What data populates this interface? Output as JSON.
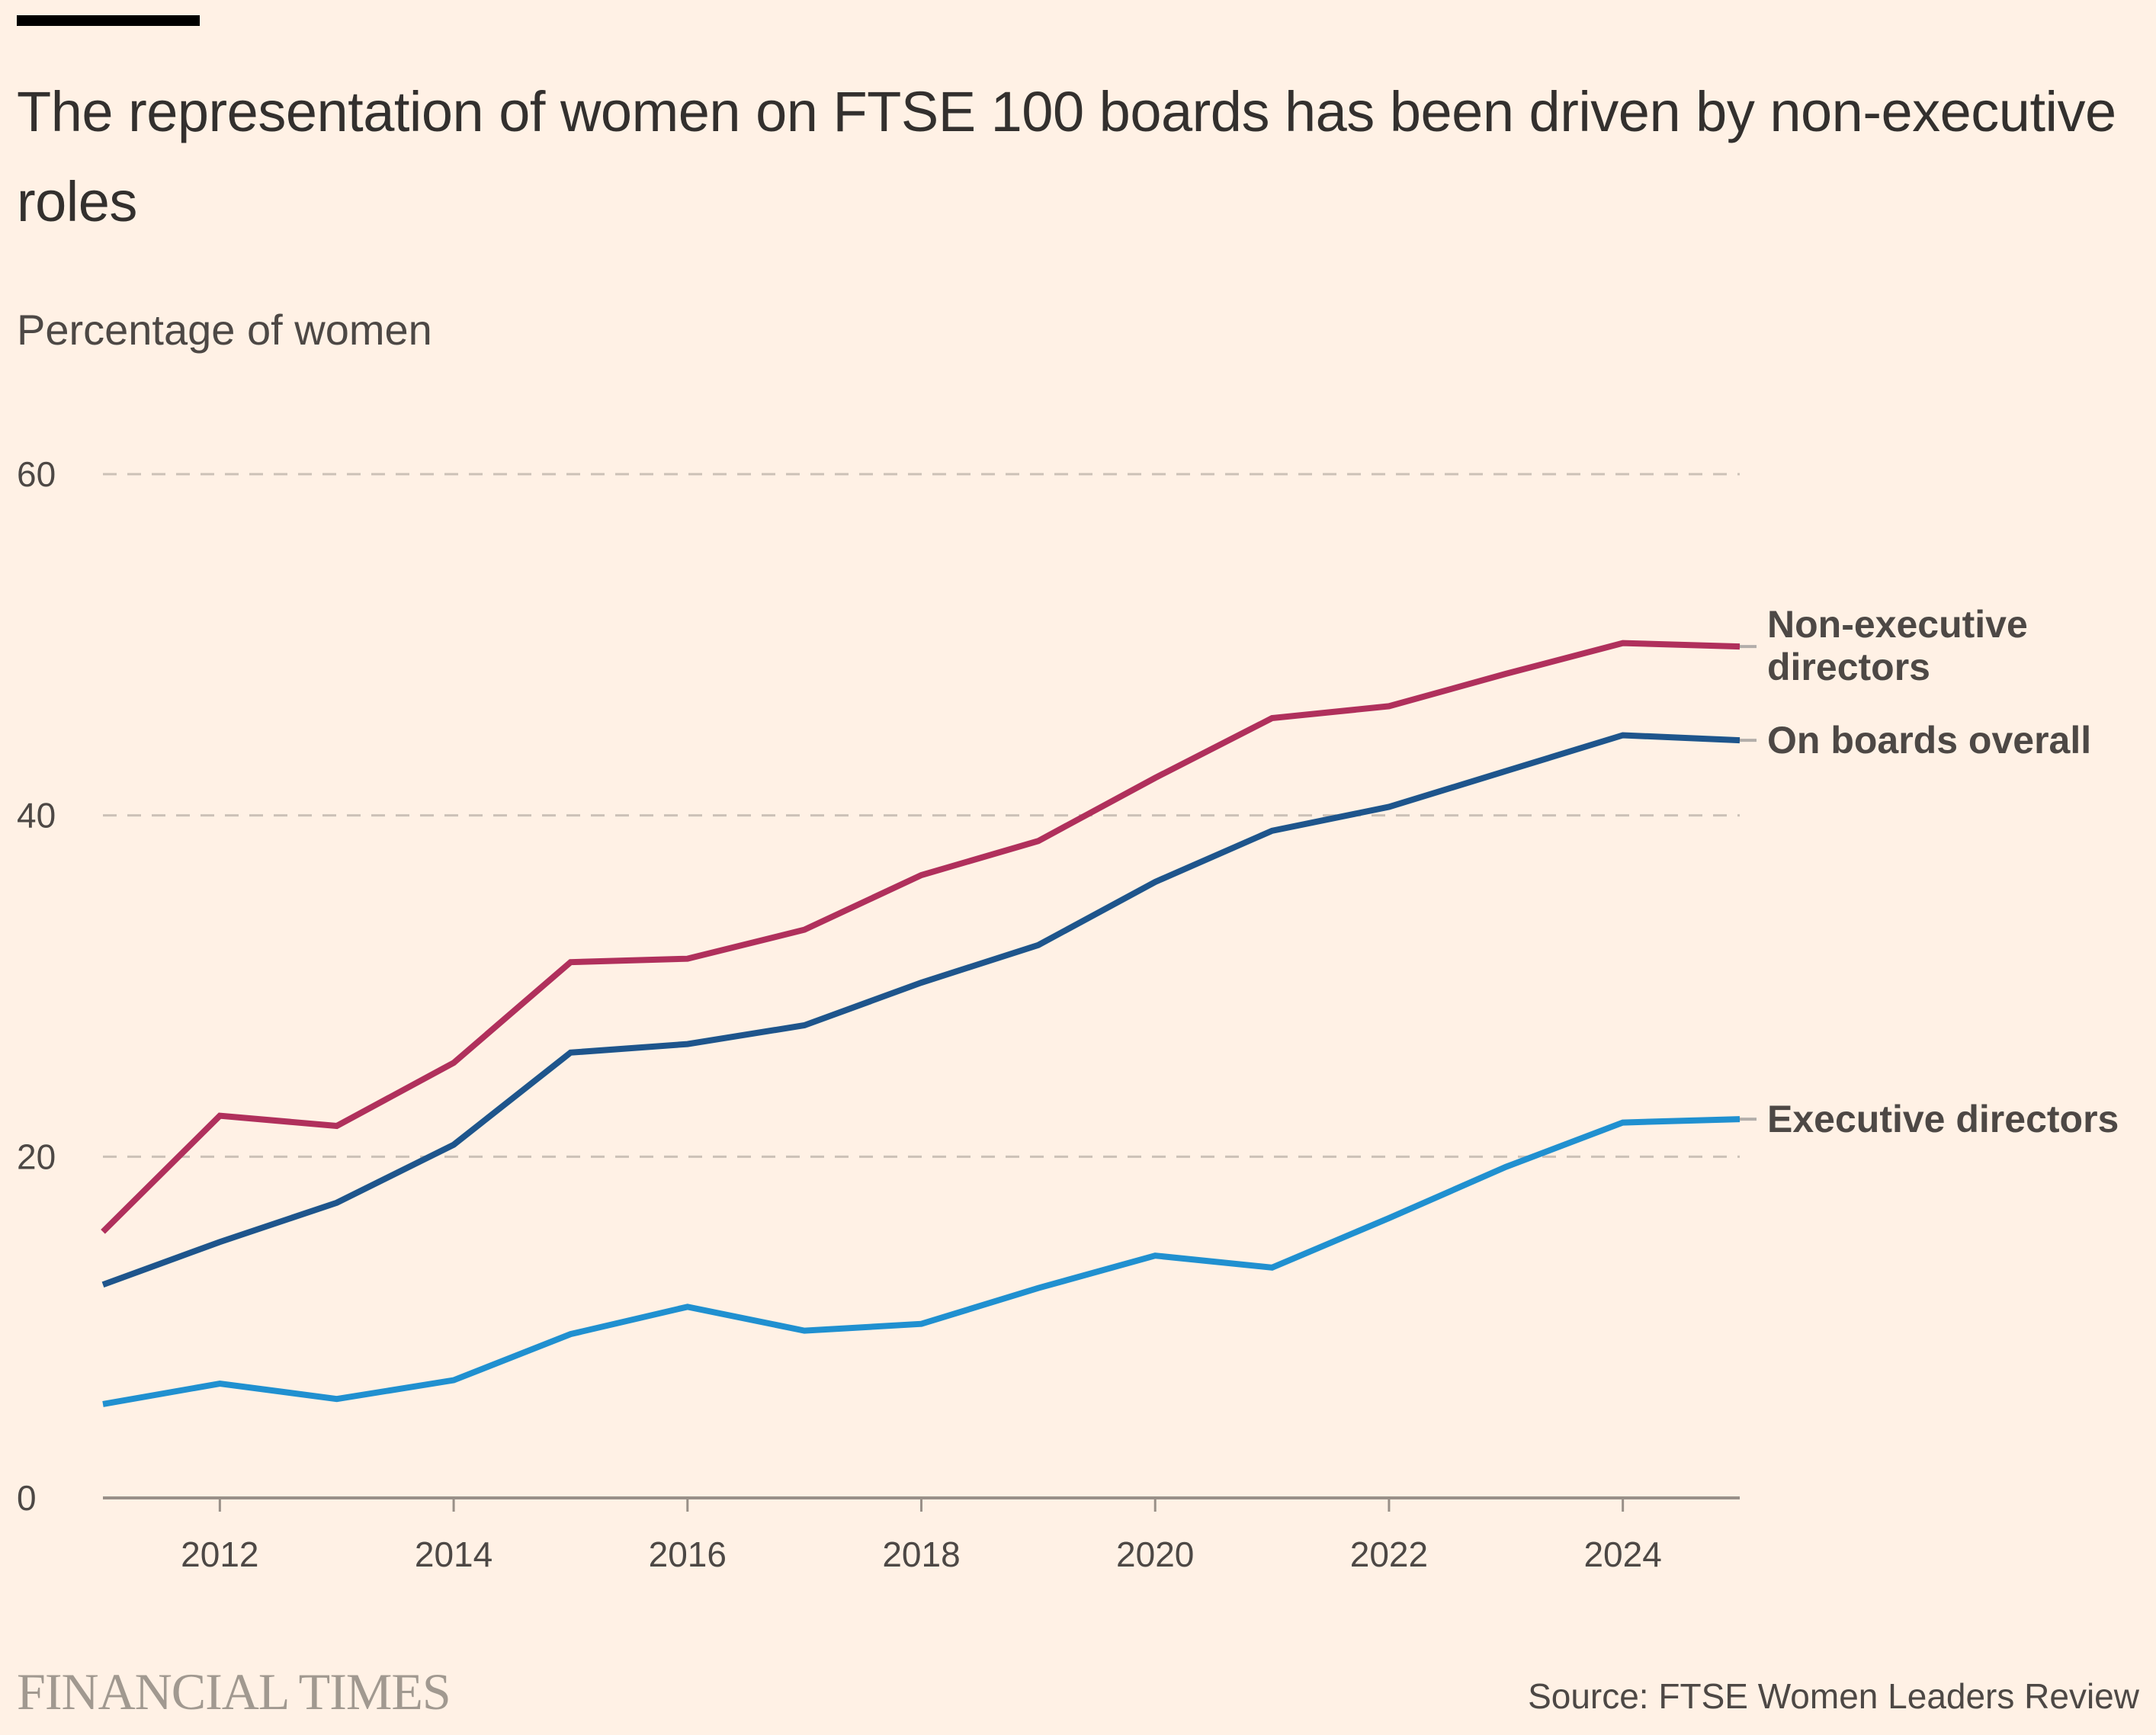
{
  "header": {
    "title": "The representation of women on FTSE 100 boards has been driven by non-executive roles",
    "subtitle": "Percentage of women"
  },
  "footer": {
    "brand": "FINANCIAL TIMES",
    "source": "Source: FTSE Women Leaders Review"
  },
  "colors": {
    "background": "#fff1e5",
    "non_executive": "#b0305c",
    "overall": "#1e558c",
    "executive": "#2090d0",
    "gridline": "#ccc1b7",
    "axis": "#999088",
    "connector": "#b3aeaa"
  },
  "chart_data": {
    "type": "line",
    "title": "The representation of women on FTSE 100 boards has been driven by non-executive roles",
    "ylabel": "Percentage of women",
    "xlabel": "",
    "x": [
      2011,
      2012,
      2013,
      2014,
      2015,
      2016,
      2017,
      2018,
      2019,
      2020,
      2021,
      2022,
      2023,
      2024,
      2025
    ],
    "xlim": [
      2011,
      2025
    ],
    "ylim": [
      0,
      60
    ],
    "yticks": [
      0,
      20,
      40,
      60
    ],
    "xticks": [
      2012,
      2014,
      2016,
      2018,
      2020,
      2022,
      2024
    ],
    "grid": true,
    "legend": "direct labels at right end of lines",
    "series": [
      {
        "name": "Non-executive directors",
        "label_lines": [
          "Non-executive",
          "directors"
        ],
        "color_key": "non_executive",
        "values": [
          15.6,
          22.4,
          21.8,
          25.5,
          31.4,
          31.6,
          33.3,
          36.5,
          38.5,
          42.2,
          45.7,
          46.4,
          48.3,
          50.1,
          49.9
        ]
      },
      {
        "name": "On boards overall",
        "label_lines": [
          "On boards overall"
        ],
        "color_key": "overall",
        "values": [
          12.5,
          15.0,
          17.3,
          20.7,
          26.1,
          26.6,
          27.7,
          30.2,
          32.4,
          36.1,
          39.1,
          40.5,
          42.6,
          44.7,
          44.4
        ]
      },
      {
        "name": "Executive directors",
        "label_lines": [
          "Executive directors"
        ],
        "color_key": "executive",
        "values": [
          5.5,
          6.7,
          5.8,
          6.9,
          9.6,
          11.2,
          9.8,
          10.2,
          12.3,
          14.2,
          13.5,
          16.4,
          19.4,
          22.0,
          22.2
        ]
      }
    ]
  }
}
